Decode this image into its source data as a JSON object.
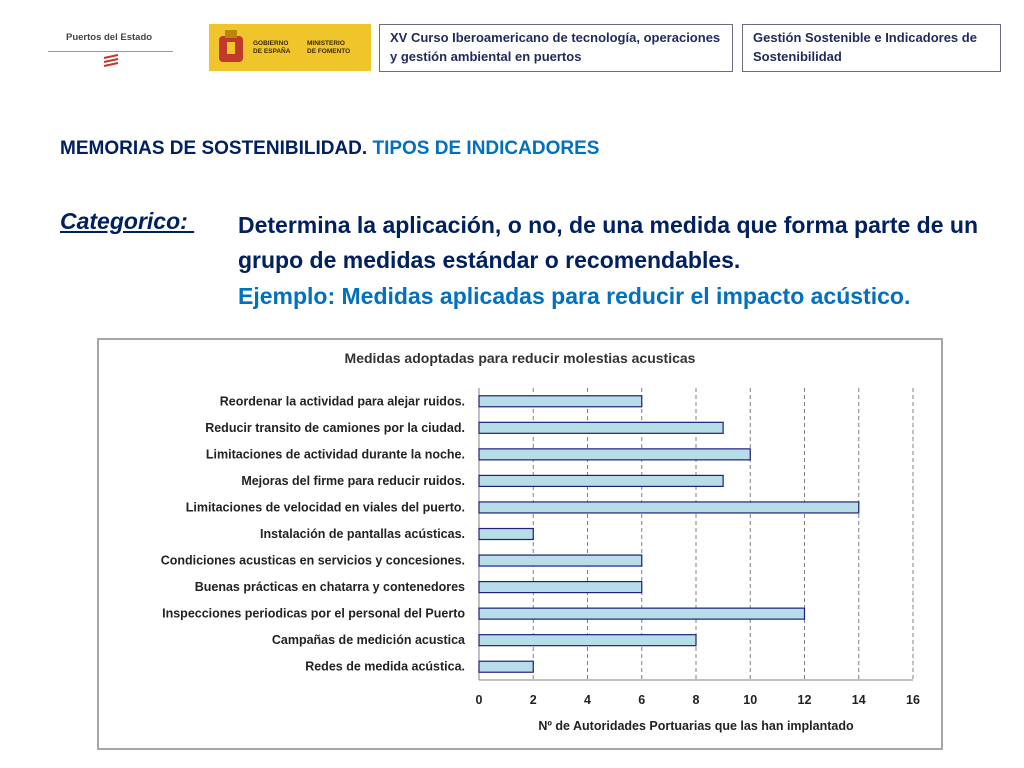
{
  "header": {
    "logo_pde_text": "Puertos del Estado",
    "logo_gob_text_1": "GOBIERNO\nDE ESPAÑA",
    "logo_gob_text_2": "MINISTERIO\nDE FOMENTO",
    "course_title": "XV Curso Iberoamericano de tecnología, operaciones y gestión ambiental en puertos",
    "module_title": "Gestión Sostenible e Indicadores de Sostenibilidad"
  },
  "slide": {
    "title_part1": "MEMORIAS DE SOSTENIBILIDAD.",
    "title_part2": "TIPOS DE INDICADORES",
    "category_label": "Categorico: ",
    "description": "Determina la aplicación, o no, de una medida que forma parte de un grupo de medidas estándar o recomendables.",
    "example": "Ejemplo: Medidas aplicadas para reducir el impacto acústico."
  },
  "colors": {
    "title_dark": "#002060",
    "title_blue": "#0070c0",
    "bar_fill": "#b7dde8",
    "bar_stroke": "#1f1f7a"
  },
  "chart_data": {
    "type": "bar",
    "orientation": "horizontal",
    "title": "Medidas adoptadas para reducir molestias acusticas",
    "xlabel": "Nº de Autoridades Portuarias que las han implantado",
    "ylabel": "",
    "xlim": [
      0,
      16
    ],
    "xticks": [
      0,
      2,
      4,
      6,
      8,
      10,
      12,
      14,
      16
    ],
    "grid": "vertical-dashed",
    "categories": [
      "Reordenar la actividad para alejar ruidos.",
      "Reducir transito de camiones por la ciudad.",
      "Limitaciones de actividad durante la noche.",
      "Mejoras del firme para reducir ruidos.",
      "Limitaciones de velocidad en viales del puerto.",
      "Instalación de pantallas acústicas.",
      "Condiciones acusticas en servicios y concesiones.",
      "Buenas prácticas en chatarra y contenedores",
      "Inspecciones periodicas por el personal del Puerto",
      "Campañas de medición acustica",
      "Redes de medida acústica."
    ],
    "values": [
      6,
      9,
      10,
      9,
      14,
      2,
      6,
      6,
      12,
      8,
      2
    ]
  }
}
